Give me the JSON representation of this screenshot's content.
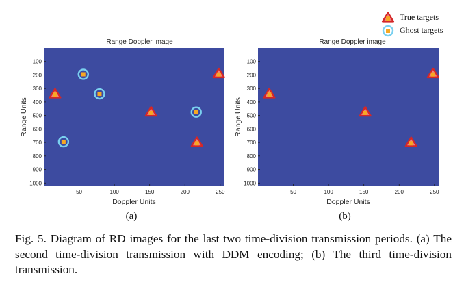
{
  "legend": {
    "true_label": "True targets",
    "ghost_label": "Ghost targets",
    "colors": {
      "triangle": "#d42727",
      "triangle_fill": "#f08080",
      "square": "#f7a823",
      "ring": "#7ad0ef",
      "background": "#3d4ba0"
    }
  },
  "chart_data": [
    {
      "type": "scatter",
      "title": "Range Doppler image",
      "xlabel": "Doppler Units",
      "ylabel": "Range Units",
      "xlim": [
        0,
        256
      ],
      "ylim": [
        1024,
        0
      ],
      "xticks": [
        50,
        100,
        150,
        200,
        250
      ],
      "yticks": [
        100,
        200,
        300,
        400,
        500,
        600,
        700,
        800,
        900,
        1000
      ],
      "panel_label": "(a)",
      "series": [
        {
          "name": "True targets",
          "points": [
            {
              "x": 16,
              "y": 340
            },
            {
              "x": 152,
              "y": 475
            },
            {
              "x": 217,
              "y": 700
            },
            {
              "x": 248,
              "y": 190
            }
          ]
        },
        {
          "name": "Ghost targets",
          "points": [
            {
              "x": 56,
              "y": 195
            },
            {
              "x": 79,
              "y": 340
            },
            {
              "x": 216,
              "y": 475
            },
            {
              "x": 28,
              "y": 695
            }
          ]
        }
      ]
    },
    {
      "type": "scatter",
      "title": "Range Doppler image",
      "xlabel": "Doppler Units",
      "ylabel": "Range Units",
      "xlim": [
        0,
        256
      ],
      "ylim": [
        1024,
        0
      ],
      "xticks": [
        50,
        100,
        150,
        200,
        250
      ],
      "yticks": [
        100,
        200,
        300,
        400,
        500,
        600,
        700,
        800,
        900,
        1000
      ],
      "panel_label": "(b)",
      "series": [
        {
          "name": "True targets",
          "points": [
            {
              "x": 16,
              "y": 340
            },
            {
              "x": 152,
              "y": 475
            },
            {
              "x": 217,
              "y": 700
            },
            {
              "x": 248,
              "y": 190
            }
          ]
        }
      ]
    }
  ],
  "caption": {
    "text": "Fig. 5.   Diagram of RD images for the last two time-division transmission periods. (a) The second time-division transmission with DDM encoding; (b) The third time-division transmission."
  }
}
